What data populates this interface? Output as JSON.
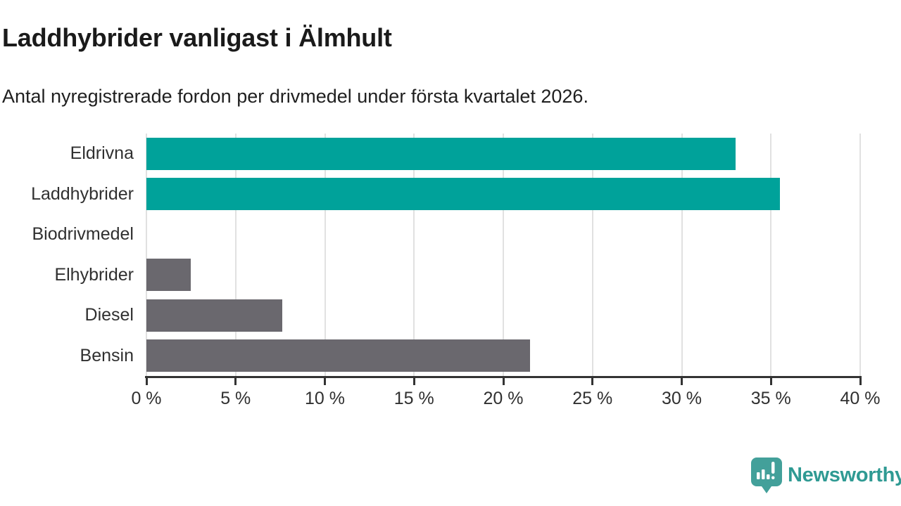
{
  "header": {
    "title": "Laddhybrider vanligast i Älmhult",
    "subtitle": "Antal nyregistrerade fordon per drivmedel under första kvartalet 2026."
  },
  "chart_data": {
    "type": "bar",
    "orientation": "horizontal",
    "title": "Laddhybrider vanligast i Älmhult",
    "subtitle": "Antal nyregistrerade fordon per drivmedel under första kvartalet 2026.",
    "categories": [
      "Eldrivna",
      "Laddhybrider",
      "Biodrivmedel",
      "Elhybrider",
      "Diesel",
      "Bensin"
    ],
    "values": [
      33,
      35.5,
      0,
      2.5,
      7.6,
      21.5
    ],
    "unit": "%",
    "bar_colors": [
      "#00a29a",
      "#00a29a",
      "#6a686e",
      "#6a686e",
      "#6a686e",
      "#6a686e"
    ],
    "highlight_color": "#00a29a",
    "default_color": "#6a686e",
    "xlim": [
      0,
      40
    ],
    "xticks": [
      0,
      5,
      10,
      15,
      20,
      25,
      30,
      35,
      40
    ],
    "xtick_labels": [
      "0 %",
      "5 %",
      "10 %",
      "15 %",
      "20 %",
      "25 %",
      "30 %",
      "35 %",
      "40 %"
    ],
    "grid": "vertical",
    "gridline_color": "#e1e1e1",
    "axis_color": "#333333",
    "legend": "none"
  },
  "footer": {
    "brand": "Newsworthy",
    "brand_color": "#2f9a93",
    "logo_icon": "newsworthy-speech-bubble-bar-chart-icon",
    "logo_icon_color": "#43a09a"
  }
}
